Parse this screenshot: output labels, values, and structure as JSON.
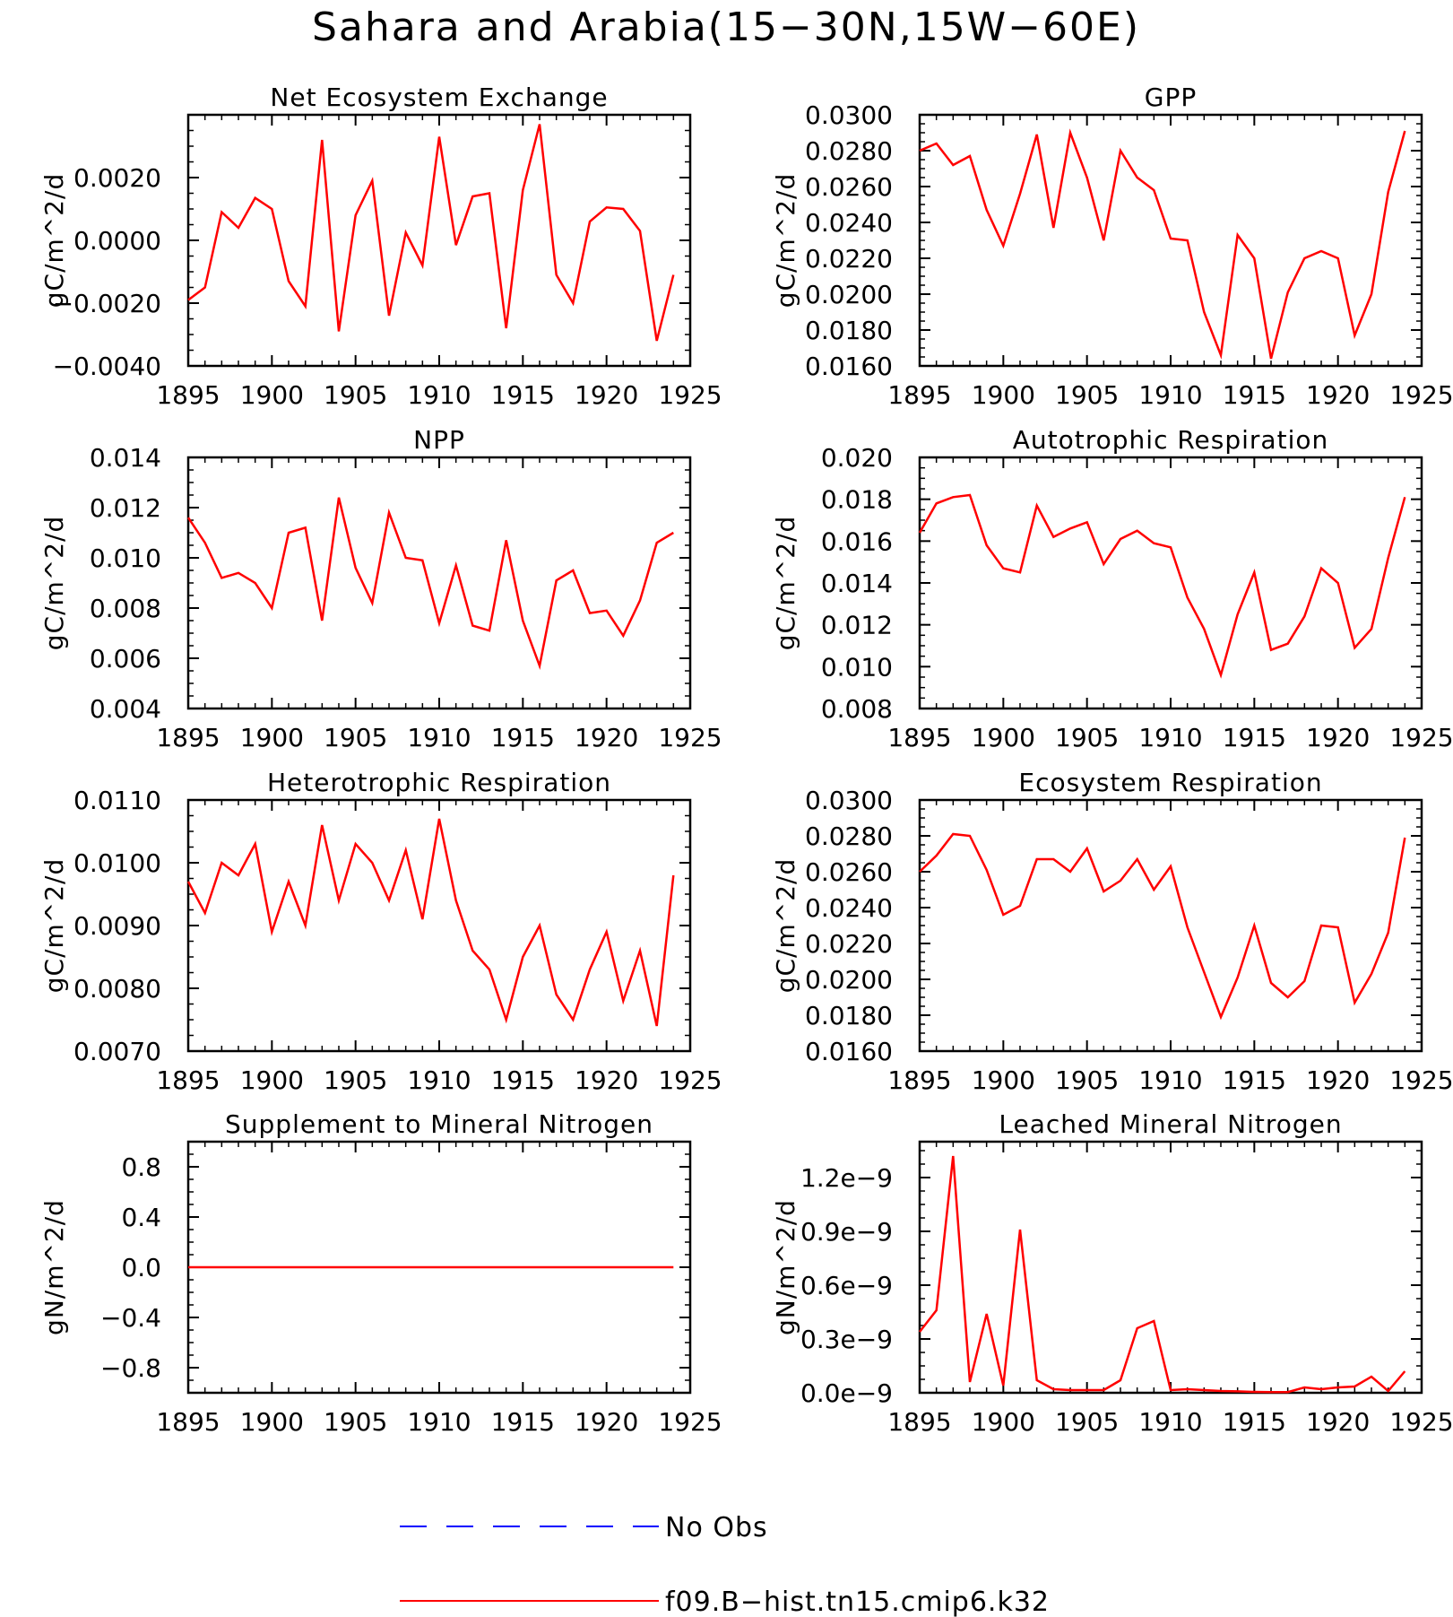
{
  "figure": {
    "title": "Sahara and Arabia(15−30N,15W−60E)",
    "colors": {
      "model": "#ff0000",
      "obs": "#0000ff",
      "axis": "#000000"
    },
    "legend": [
      {
        "label": "No Obs",
        "style": "dashed",
        "color": "#0000ff"
      },
      {
        "label": "f09.B−hist.tn15.cmip6.k32",
        "style": "solid",
        "color": "#ff0000"
      }
    ]
  },
  "chart_data": [
    {
      "type": "line",
      "title": "Net Ecosystem Exchange",
      "ylabel": "gC/m^2/d",
      "xlim": [
        1895,
        1925
      ],
      "ylim": [
        -0.004,
        0.004
      ],
      "xticks": [
        "1895",
        "1900",
        "1905",
        "1910",
        "1915",
        "1920",
        "1925"
      ],
      "yticks": [
        -0.004,
        -0.002,
        0.0,
        0.002
      ],
      "ytick_labels": [
        "−0.0040",
        "−0.0020",
        "0.0000",
        "0.0020"
      ],
      "x": [
        1895,
        1896,
        1897,
        1898,
        1899,
        1900,
        1901,
        1902,
        1903,
        1904,
        1905,
        1906,
        1907,
        1908,
        1909,
        1910,
        1911,
        1912,
        1913,
        1914,
        1915,
        1916,
        1917,
        1918,
        1919,
        1920,
        1921,
        1922,
        1923,
        1924
      ],
      "series": [
        {
          "name": "f09.B−hist.tn15.cmip6.k32",
          "values": [
            -0.0019,
            -0.0015,
            0.0009,
            0.0004,
            0.00135,
            0.001,
            -0.0013,
            -0.0021,
            0.0032,
            -0.0029,
            0.0008,
            0.0019,
            -0.0024,
            0.00025,
            -0.0008,
            0.0033,
            -0.00015,
            0.0014,
            0.0015,
            -0.0028,
            0.0016,
            0.0037,
            -0.0011,
            -0.002,
            0.0006,
            0.00105,
            0.001,
            0.0003,
            -0.0032,
            -0.0011
          ]
        }
      ]
    },
    {
      "type": "line",
      "title": "GPP",
      "ylabel": "gC/m^2/d",
      "xlim": [
        1895,
        1925
      ],
      "ylim": [
        0.016,
        0.03
      ],
      "xticks": [
        "1895",
        "1900",
        "1905",
        "1910",
        "1915",
        "1920",
        "1925"
      ],
      "yticks": [
        0.016,
        0.018,
        0.02,
        0.022,
        0.024,
        0.026,
        0.028,
        0.03
      ],
      "ytick_labels": [
        "0.0160",
        "0.0180",
        "0.0200",
        "0.0220",
        "0.0240",
        "0.0260",
        "0.0280",
        "0.0300"
      ],
      "x": [
        1895,
        1896,
        1897,
        1898,
        1899,
        1900,
        1901,
        1902,
        1903,
        1904,
        1905,
        1906,
        1907,
        1908,
        1909,
        1910,
        1911,
        1912,
        1913,
        1914,
        1915,
        1916,
        1917,
        1918,
        1919,
        1920,
        1921,
        1922,
        1923,
        1924
      ],
      "series": [
        {
          "name": "f09.B−hist.tn15.cmip6.k32",
          "values": [
            0.028,
            0.0284,
            0.0272,
            0.0277,
            0.0247,
            0.0227,
            0.0256,
            0.0289,
            0.0237,
            0.029,
            0.0265,
            0.023,
            0.028,
            0.0265,
            0.0258,
            0.0231,
            0.023,
            0.019,
            0.0166,
            0.0233,
            0.022,
            0.0164,
            0.0201,
            0.022,
            0.0224,
            0.022,
            0.0177,
            0.02,
            0.0257,
            0.0291
          ]
        }
      ]
    },
    {
      "type": "line",
      "title": "NPP",
      "ylabel": "gC/m^2/d",
      "xlim": [
        1895,
        1925
      ],
      "ylim": [
        0.004,
        0.014
      ],
      "xticks": [
        "1895",
        "1900",
        "1905",
        "1910",
        "1915",
        "1920",
        "1925"
      ],
      "yticks": [
        0.004,
        0.006,
        0.008,
        0.01,
        0.012,
        0.014
      ],
      "ytick_labels": [
        "0.004",
        "0.006",
        "0.008",
        "0.010",
        "0.012",
        "0.014"
      ],
      "x": [
        1895,
        1896,
        1897,
        1898,
        1899,
        1900,
        1901,
        1902,
        1903,
        1904,
        1905,
        1906,
        1907,
        1908,
        1909,
        1910,
        1911,
        1912,
        1913,
        1914,
        1915,
        1916,
        1917,
        1918,
        1919,
        1920,
        1921,
        1922,
        1923,
        1924
      ],
      "series": [
        {
          "name": "f09.B−hist.tn15.cmip6.k32",
          "values": [
            0.0116,
            0.0106,
            0.0092,
            0.0094,
            0.009,
            0.008,
            0.011,
            0.0112,
            0.0075,
            0.0124,
            0.0096,
            0.0082,
            0.0118,
            0.01,
            0.0099,
            0.0074,
            0.0097,
            0.0073,
            0.0071,
            0.0107,
            0.0075,
            0.0057,
            0.0091,
            0.0095,
            0.0078,
            0.0079,
            0.0069,
            0.0083,
            0.0106,
            0.011
          ]
        }
      ]
    },
    {
      "type": "line",
      "title": "Autotrophic Respiration",
      "ylabel": "gC/m^2/d",
      "xlim": [
        1895,
        1925
      ],
      "ylim": [
        0.008,
        0.02
      ],
      "xticks": [
        "1895",
        "1900",
        "1905",
        "1910",
        "1915",
        "1920",
        "1925"
      ],
      "yticks": [
        0.008,
        0.01,
        0.012,
        0.014,
        0.016,
        0.018,
        0.02
      ],
      "ytick_labels": [
        "0.008",
        "0.010",
        "0.012",
        "0.014",
        "0.016",
        "0.018",
        "0.020"
      ],
      "x": [
        1895,
        1896,
        1897,
        1898,
        1899,
        1900,
        1901,
        1902,
        1903,
        1904,
        1905,
        1906,
        1907,
        1908,
        1909,
        1910,
        1911,
        1912,
        1913,
        1914,
        1915,
        1916,
        1917,
        1918,
        1919,
        1920,
        1921,
        1922,
        1923,
        1924
      ],
      "series": [
        {
          "name": "f09.B−hist.tn15.cmip6.k32",
          "values": [
            0.0164,
            0.0178,
            0.0181,
            0.0182,
            0.0158,
            0.0147,
            0.0145,
            0.0177,
            0.0162,
            0.0166,
            0.0169,
            0.0149,
            0.0161,
            0.0165,
            0.0159,
            0.0157,
            0.0133,
            0.0118,
            0.0096,
            0.0125,
            0.0145,
            0.0108,
            0.0111,
            0.0124,
            0.0147,
            0.014,
            0.0109,
            0.0118,
            0.0152,
            0.0181
          ]
        }
      ]
    },
    {
      "type": "line",
      "title": "Heterotrophic Respiration",
      "ylabel": "gC/m^2/d",
      "xlim": [
        1895,
        1925
      ],
      "ylim": [
        0.007,
        0.011
      ],
      "xticks": [
        "1895",
        "1900",
        "1905",
        "1910",
        "1915",
        "1920",
        "1925"
      ],
      "yticks": [
        0.007,
        0.008,
        0.009,
        0.01,
        0.011
      ],
      "ytick_labels": [
        "0.0070",
        "0.0080",
        "0.0090",
        "0.0100",
        "0.0110"
      ],
      "x": [
        1895,
        1896,
        1897,
        1898,
        1899,
        1900,
        1901,
        1902,
        1903,
        1904,
        1905,
        1906,
        1907,
        1908,
        1909,
        1910,
        1911,
        1912,
        1913,
        1914,
        1915,
        1916,
        1917,
        1918,
        1919,
        1920,
        1921,
        1922,
        1923,
        1924
      ],
      "series": [
        {
          "name": "f09.B−hist.tn15.cmip6.k32",
          "values": [
            0.0097,
            0.0092,
            0.01,
            0.0098,
            0.0103,
            0.0089,
            0.0097,
            0.009,
            0.0106,
            0.0094,
            0.0103,
            0.01,
            0.0094,
            0.0102,
            0.0091,
            0.0107,
            0.0094,
            0.0086,
            0.0083,
            0.0075,
            0.0085,
            0.009,
            0.0079,
            0.0075,
            0.0083,
            0.0089,
            0.0078,
            0.0086,
            0.0074,
            0.0098
          ]
        }
      ]
    },
    {
      "type": "line",
      "title": "Ecosystem Respiration",
      "ylabel": "gC/m^2/d",
      "xlim": [
        1895,
        1925
      ],
      "ylim": [
        0.016,
        0.03
      ],
      "xticks": [
        "1895",
        "1900",
        "1905",
        "1910",
        "1915",
        "1920",
        "1925"
      ],
      "yticks": [
        0.016,
        0.018,
        0.02,
        0.022,
        0.024,
        0.026,
        0.028,
        0.03
      ],
      "ytick_labels": [
        "0.0160",
        "0.0180",
        "0.0200",
        "0.0220",
        "0.0240",
        "0.0260",
        "0.0280",
        "0.0300"
      ],
      "x": [
        1895,
        1896,
        1897,
        1898,
        1899,
        1900,
        1901,
        1902,
        1903,
        1904,
        1905,
        1906,
        1907,
        1908,
        1909,
        1910,
        1911,
        1912,
        1913,
        1914,
        1915,
        1916,
        1917,
        1918,
        1919,
        1920,
        1921,
        1922,
        1923,
        1924
      ],
      "series": [
        {
          "name": "f09.B−hist.tn15.cmip6.k32",
          "values": [
            0.026,
            0.0269,
            0.0281,
            0.028,
            0.0261,
            0.0236,
            0.0241,
            0.0267,
            0.0267,
            0.026,
            0.0273,
            0.0249,
            0.0255,
            0.0267,
            0.025,
            0.0263,
            0.0229,
            0.0204,
            0.0179,
            0.0201,
            0.023,
            0.0198,
            0.019,
            0.0199,
            0.023,
            0.0229,
            0.0187,
            0.0203,
            0.0226,
            0.0279
          ]
        }
      ]
    },
    {
      "type": "line",
      "title": "Supplement to Mineral Nitrogen",
      "ylabel": "gN/m^2/d",
      "xlim": [
        1895,
        1925
      ],
      "ylim": [
        -1.0,
        1.0
      ],
      "xticks": [
        "1895",
        "1900",
        "1905",
        "1910",
        "1915",
        "1920",
        "1925"
      ],
      "yticks": [
        -0.8,
        -0.4,
        0.0,
        0.4,
        0.8
      ],
      "ytick_labels": [
        "−0.8",
        "−0.4",
        "0.0",
        "0.4",
        "0.8"
      ],
      "x": [
        1895,
        1896,
        1897,
        1898,
        1899,
        1900,
        1901,
        1902,
        1903,
        1904,
        1905,
        1906,
        1907,
        1908,
        1909,
        1910,
        1911,
        1912,
        1913,
        1914,
        1915,
        1916,
        1917,
        1918,
        1919,
        1920,
        1921,
        1922,
        1923,
        1924
      ],
      "series": [
        {
          "name": "f09.B−hist.tn15.cmip6.k32",
          "values": [
            0,
            0,
            0,
            0,
            0,
            0,
            0,
            0,
            0,
            0,
            0,
            0,
            0,
            0,
            0,
            0,
            0,
            0,
            0,
            0,
            0,
            0,
            0,
            0,
            0,
            0,
            0,
            0,
            0,
            0
          ]
        }
      ]
    },
    {
      "type": "line",
      "title": "Leached Mineral Nitrogen",
      "ylabel": "gN/m^2/d",
      "xlim": [
        1895,
        1925
      ],
      "ylim": [
        0.0,
        1.4e-09
      ],
      "xticks": [
        "1895",
        "1900",
        "1905",
        "1910",
        "1915",
        "1920",
        "1925"
      ],
      "yticks": [
        0.0,
        3e-10,
        6e-10,
        9e-10,
        1.2e-09
      ],
      "ytick_labels": [
        "0.0e−9",
        "0.3e−9",
        "0.6e−9",
        "0.9e−9",
        "1.2e−9"
      ],
      "x": [
        1895,
        1896,
        1897,
        1898,
        1899,
        1900,
        1901,
        1902,
        1903,
        1904,
        1905,
        1906,
        1907,
        1908,
        1909,
        1910,
        1911,
        1912,
        1913,
        1914,
        1915,
        1916,
        1917,
        1918,
        1919,
        1920,
        1921,
        1922,
        1923,
        1924
      ],
      "series": [
        {
          "name": "f09.B−hist.tn15.cmip6.k32",
          "values": [
            3.4e-10,
            4.6e-10,
            1.32e-09,
            6e-11,
            4.4e-10,
            4e-11,
            9.1e-10,
            7e-11,
            2e-11,
            1.5e-11,
            1.5e-11,
            1.5e-11,
            7e-11,
            3.6e-10,
            4e-10,
            1.5e-11,
            2e-11,
            1.5e-11,
            1e-11,
            8e-12,
            5e-12,
            4e-12,
            4e-12,
            3e-11,
            2e-11,
            3e-11,
            3.5e-11,
            9e-11,
            1e-11,
            1.2e-10
          ]
        }
      ]
    }
  ]
}
